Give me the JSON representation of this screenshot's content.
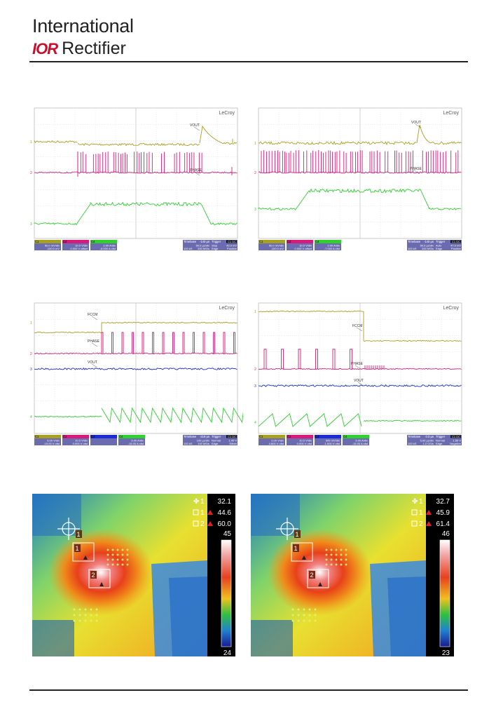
{
  "header": {
    "brand_line1": "International",
    "brand_mark": "IOR",
    "brand_line2": "Rectifier"
  },
  "scopes": [
    {
      "id": "scope-1",
      "brand": "LeCroy",
      "trace_labels": [
        "VOUT",
        "PHASE"
      ],
      "status": {
        "ch": [
          "C1",
          "C2",
          "C4"
        ],
        "vdiv": [
          "50.0 mV/div",
          "10.0 V/div",
          "2.00 A/div"
        ],
        "offset": [
          "-100.0 mV",
          "0.000 V offset",
          "-6.000 A ofst"
        ],
        "timebase": [
          "Timebase",
          "-140 µs",
          "50.0 µs/div",
          "100 kS",
          "200 MS/s"
        ],
        "trigger": [
          "Trigger",
          "C1 DC",
          "Stop",
          "42.0 mV",
          "Edge",
          "Positive"
        ]
      }
    },
    {
      "id": "scope-2",
      "brand": "LeCroy",
      "trace_labels": [
        "VOUT",
        "PHASE"
      ],
      "status": {
        "ch": [
          "C1",
          "C2",
          "C4"
        ],
        "vdiv": [
          "50.0 mV/div",
          "10.0 V/div",
          "2.00 A/div"
        ],
        "offset": [
          "-100.0 mV",
          "0.000 V offset",
          "-7.000 A ofst"
        ],
        "timebase": [
          "Timebase",
          "-140 µs",
          "50.0 µs/div",
          "100 kS",
          "200 MS/s"
        ],
        "trigger": [
          "Trigger",
          "C1 DC",
          "Auto",
          "47.0 mV",
          "Edge",
          "Positive"
        ]
      }
    },
    {
      "id": "scope-3",
      "brand": "LeCroy",
      "trace_labels": [
        "FCCM",
        "PHASE",
        "VOUT"
      ],
      "status": {
        "ch": [
          "C1",
          "C2",
          "C3",
          "C4"
        ],
        "vdiv": [
          "5.00 V/div",
          "10.0 V/div",
          "",
          "5.00 A/div"
        ],
        "offset": [
          "-15.00 V ofst",
          "0.000 V ofst",
          "",
          "-15.00 A ofst"
        ],
        "timebase": [
          "Timebase",
          "-219 µs",
          "100 µs/div",
          "100 kS",
          "100 MS/s"
        ],
        "trigger": [
          "Trigger",
          "C1 DC",
          "Normal",
          "1.40 V",
          "Edge",
          "Either"
        ]
      }
    },
    {
      "id": "scope-4",
      "brand": "LeCroy",
      "trace_labels": [
        "FCCM",
        "PHASE",
        "VOUT"
      ],
      "status": {
        "ch": [
          "C1",
          "C2",
          "C3",
          "C4"
        ],
        "vdiv": [
          "2.00 V/div",
          "10.0 V/div",
          "500 mV/div",
          "5.00 A/div"
        ],
        "offset": [
          "4.800 V ofst",
          "0.000 V ofst",
          "-1.600 V ofst",
          "-15.00 A ofst"
        ],
        "timebase": [
          "Timebase",
          "0.0 µs",
          "5.00 µs/div",
          "100 kS",
          "1.0 GS/s"
        ],
        "trigger": [
          "Trigger",
          "C1 DC",
          "Normal",
          "1.50 V",
          "Edge",
          "Negative"
        ]
      }
    }
  ],
  "thermals": [
    {
      "id": "thermal-1",
      "readout": [
        {
          "label": "1",
          "value": "32.1",
          "kind": "crosshair"
        },
        {
          "label": "1",
          "value": "44.6",
          "kind": "box"
        },
        {
          "label": "2",
          "value": "60.0",
          "kind": "box"
        }
      ],
      "scale_max": "45",
      "scale_min": "24",
      "markers": [
        "1",
        "1",
        "2"
      ]
    },
    {
      "id": "thermal-2",
      "readout": [
        {
          "label": "1",
          "value": "32.7",
          "kind": "crosshair"
        },
        {
          "label": "1",
          "value": "45.9",
          "kind": "box"
        },
        {
          "label": "2",
          "value": "61.4",
          "kind": "box"
        }
      ],
      "scale_max": "46",
      "scale_min": "23",
      "markers": [
        "1",
        "1",
        "2"
      ]
    }
  ],
  "colors": {
    "ch1": "#a8a020",
    "ch2": "#d81b7a",
    "ch3": "#1a2bd8",
    "ch4": "#2fd12f"
  }
}
